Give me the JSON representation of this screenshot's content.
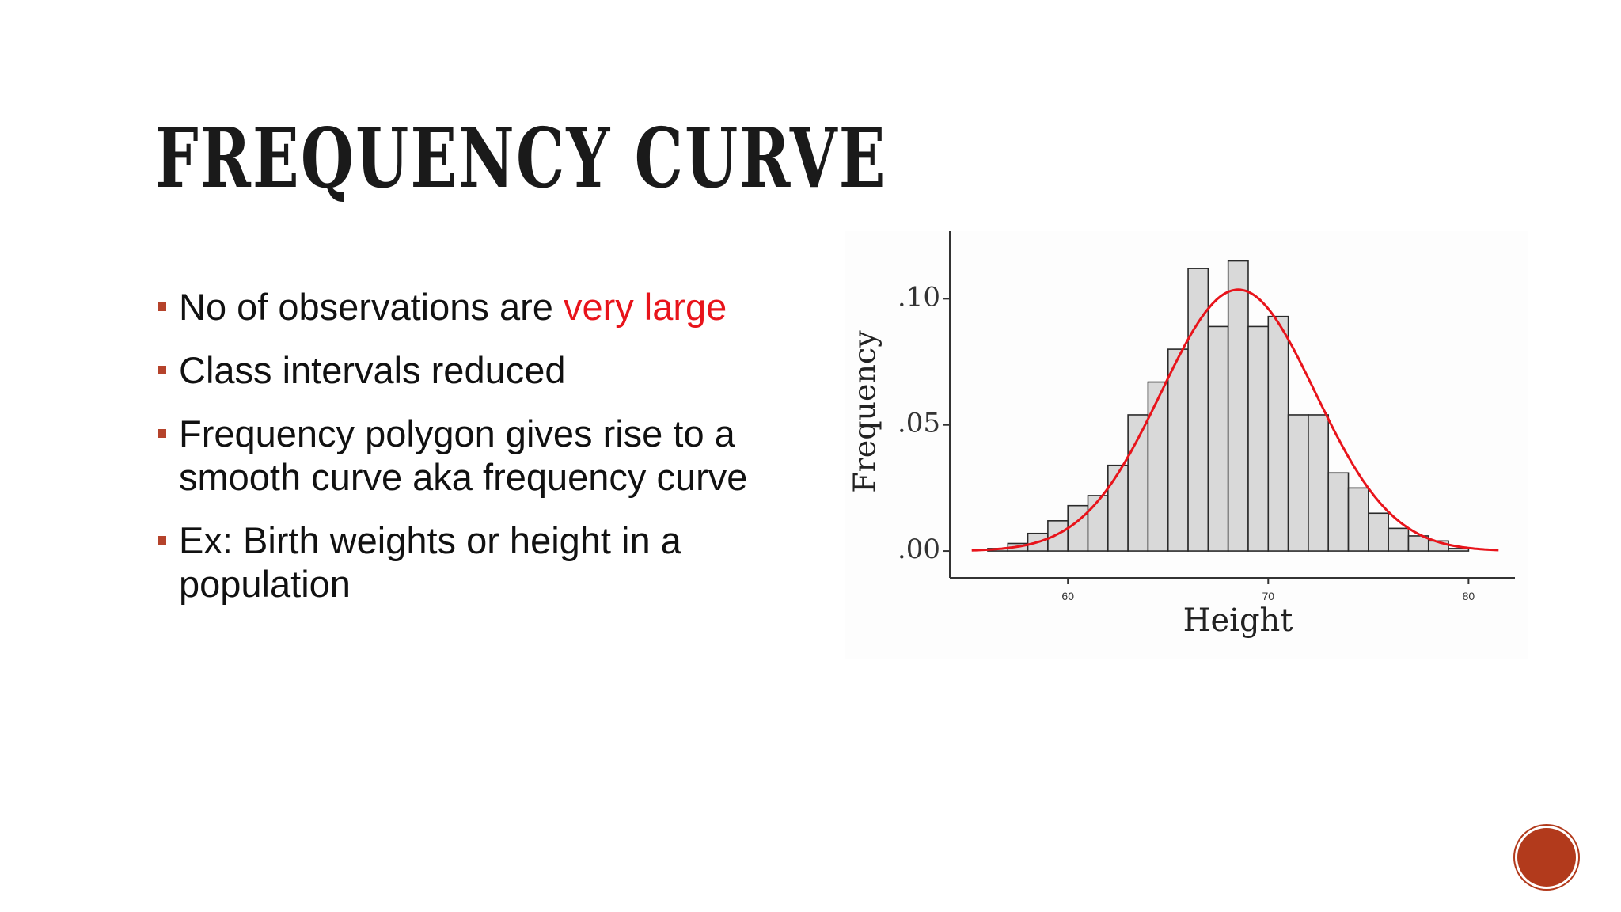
{
  "slide": {
    "title": "Frequency Curve",
    "bullets": [
      {
        "text": "No of observations are ",
        "highlight": "very large"
      },
      {
        "text": "Class intervals reduced"
      },
      {
        "text": "Frequency polygon gives rise to a smooth curve aka frequency curve"
      },
      {
        "text": "Ex: Birth weights or height in a population"
      }
    ]
  },
  "colors": {
    "bullet_marker": "#b5432b",
    "highlight_text": "#e8141b",
    "curve": "#e8141b",
    "bar_fill": "#d9d9d9",
    "accent_circle": "#b23a1c"
  },
  "chart_data": {
    "type": "bar",
    "xlabel": "Height",
    "ylabel": "Frequency",
    "xlim": [
      54.5,
      82
    ],
    "ylim": [
      -0.005,
      0.118
    ],
    "x_ticks": [
      60,
      70,
      80
    ],
    "x_tick_labels": [
      "60",
      "70",
      "80"
    ],
    "y_ticks": [
      0.0,
      0.05,
      0.1
    ],
    "y_tick_labels": [
      ".00",
      ".05",
      ".10"
    ],
    "bin_width": 1,
    "bins_start": [
      56,
      57,
      58,
      59,
      60,
      61,
      62,
      63,
      64,
      65,
      66,
      67,
      68,
      69,
      70,
      71,
      72,
      73,
      74,
      75,
      76,
      77,
      78,
      79
    ],
    "values": [
      0.001,
      0.003,
      0.007,
      0.012,
      0.018,
      0.022,
      0.034,
      0.054,
      0.067,
      0.08,
      0.112,
      0.089,
      0.115,
      0.089,
      0.093,
      0.054,
      0.054,
      0.031,
      0.025,
      0.015,
      0.009,
      0.006,
      0.004,
      0.001
    ],
    "curve": {
      "name": "",
      "type": "normal_density",
      "mean": 68.5,
      "sd": 3.85,
      "x_range": [
        55.2,
        81.5
      ]
    },
    "grid": false,
    "legend": "none"
  }
}
